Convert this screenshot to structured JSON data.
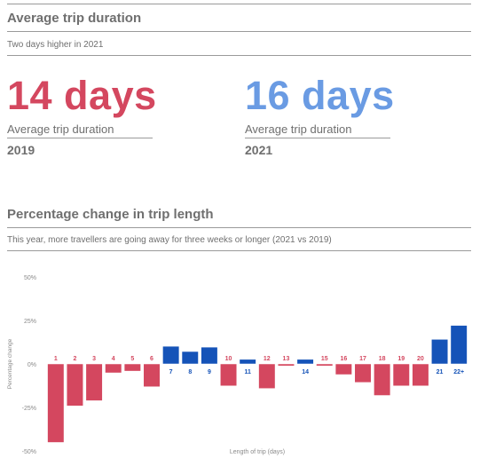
{
  "section1": {
    "title": "Average trip duration",
    "subtitle": "Two days higher in 2021"
  },
  "stats": [
    {
      "value": "14 days",
      "label": "Average trip duration",
      "year": "2019",
      "color": "#d4475f"
    },
    {
      "value": "16 days",
      "label": "Average trip duration",
      "year": "2021",
      "color": "#6a9be3"
    }
  ],
  "section2": {
    "title": "Percentage change in trip length",
    "subtitle": "This year, more travellers are going away for three weeks or longer (2021 vs 2019)"
  },
  "colors": {
    "negative": "#d4475f",
    "positive": "#1553b8"
  },
  "chart_data": {
    "type": "bar",
    "title": "",
    "xlabel": "Length of trip (days)",
    "ylabel": "Percentage change",
    "ylim": [
      -50,
      50
    ],
    "yticks": [
      "50%",
      "25%",
      "0%",
      "-25%",
      "-50%"
    ],
    "yticks_values": [
      50,
      25,
      0,
      -25,
      -50
    ],
    "grid": false,
    "categories": [
      "1",
      "2",
      "3",
      "4",
      "5",
      "6",
      "7",
      "8",
      "9",
      "10",
      "11",
      "12",
      "13",
      "14",
      "15",
      "16",
      "17",
      "18",
      "19",
      "20",
      "21",
      "22+"
    ],
    "values": [
      -45,
      -24,
      -21,
      -5,
      -4,
      -13,
      10,
      7,
      9.5,
      -12.5,
      2.5,
      -14,
      -1,
      2.5,
      -1,
      -6,
      -10.5,
      -18,
      -12.5,
      -12.5,
      14,
      22
    ]
  }
}
